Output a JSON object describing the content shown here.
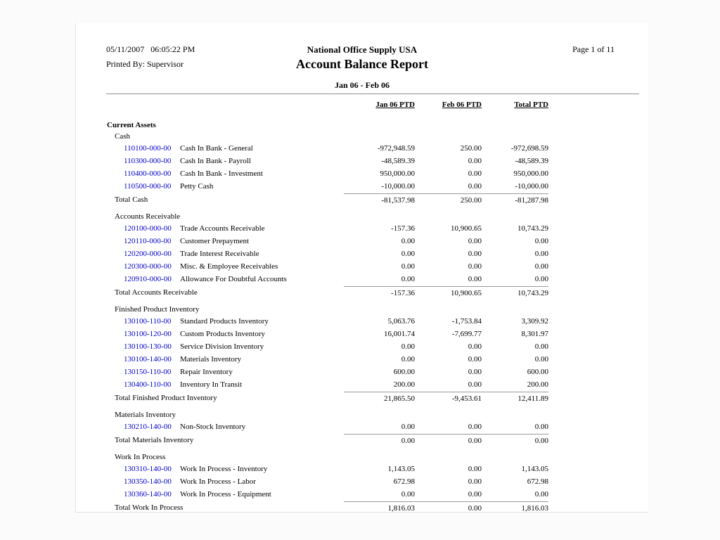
{
  "header": {
    "datetime": "05/11/2007   06:05:22 PM",
    "printed_by": "Printed By: Supervisor",
    "company": "National Office Supply USA",
    "report_title": "Account Balance Report",
    "period": "Jan 06 - Feb 06",
    "page_label": "Page 1 of 11"
  },
  "columns": [
    "Jan 06 PTD",
    "Feb 06 PTD",
    "Total PTD"
  ],
  "colors": {
    "account_link": "#0000cc",
    "rule_gray": "#8f8f8f",
    "total_rule_gray": "#9a9a9a",
    "page_bg": "#ffffff",
    "text": "#000000"
  },
  "report": {
    "group_title": "Current Assets",
    "sections": [
      {
        "name": "Cash",
        "accounts": [
          {
            "number": "110100-000-00",
            "description": "Cash In Bank - General",
            "values": [
              "-972,948.59",
              "250.00",
              "-972,698.59"
            ]
          },
          {
            "number": "110300-000-00",
            "description": "Cash In Bank - Payroll",
            "values": [
              "-48,589.39",
              "0.00",
              "-48,589.39"
            ]
          },
          {
            "number": "110400-000-00",
            "description": "Cash In Bank - Investment",
            "values": [
              "950,000.00",
              "0.00",
              "950,000.00"
            ]
          },
          {
            "number": "110500-000-00",
            "description": "Petty Cash",
            "values": [
              "-10,000.00",
              "0.00",
              "-10,000.00"
            ]
          }
        ],
        "total_label": "Total Cash",
        "totals": [
          "-81,537.98",
          "250.00",
          "-81,287.98"
        ]
      },
      {
        "name": "Accounts Receivable",
        "accounts": [
          {
            "number": "120100-000-00",
            "description": "Trade Accounts Receivable",
            "values": [
              "-157.36",
              "10,900.65",
              "10,743.29"
            ]
          },
          {
            "number": "120110-000-00",
            "description": "Customer Prepayment",
            "values": [
              "0.00",
              "0.00",
              "0.00"
            ]
          },
          {
            "number": "120200-000-00",
            "description": "Trade Interest Receivable",
            "values": [
              "0.00",
              "0.00",
              "0.00"
            ]
          },
          {
            "number": "120300-000-00",
            "description": "Misc. & Employee Receivables",
            "values": [
              "0.00",
              "0.00",
              "0.00"
            ]
          },
          {
            "number": "120910-000-00",
            "description": "Allowance For Doubtful Accounts",
            "values": [
              "0.00",
              "0.00",
              "0.00"
            ]
          }
        ],
        "total_label": "Total Accounts Receivable",
        "totals": [
          "-157.36",
          "10,900.65",
          "10,743.29"
        ]
      },
      {
        "name": "Finished Product Inventory",
        "accounts": [
          {
            "number": "130100-110-00",
            "description": "Standard Products Inventory",
            "values": [
              "5,063.76",
              "-1,753.84",
              "3,309.92"
            ]
          },
          {
            "number": "130100-120-00",
            "description": "Custom Products Inventory",
            "values": [
              "16,001.74",
              "-7,699.77",
              "8,301.97"
            ]
          },
          {
            "number": "130100-130-00",
            "description": "Service Division Inventory",
            "values": [
              "0.00",
              "0.00",
              "0.00"
            ]
          },
          {
            "number": "130100-140-00",
            "description": "Materials Inventory",
            "values": [
              "0.00",
              "0.00",
              "0.00"
            ]
          },
          {
            "number": "130150-110-00",
            "description": "Repair Inventory",
            "values": [
              "600.00",
              "0.00",
              "600.00"
            ]
          },
          {
            "number": "130400-110-00",
            "description": "Inventory In Transit",
            "values": [
              "200.00",
              "0.00",
              "200.00"
            ]
          }
        ],
        "total_label": "Total Finished Product Inventory",
        "totals": [
          "21,865.50",
          "-9,453.61",
          "12,411.89"
        ]
      },
      {
        "name": "Materials Inventory",
        "accounts": [
          {
            "number": "130210-140-00",
            "description": "Non-Stock Inventory",
            "values": [
              "0.00",
              "0.00",
              "0.00"
            ]
          }
        ],
        "total_label": "Total Materials Inventory",
        "totals": [
          "0.00",
          "0.00",
          "0.00"
        ]
      },
      {
        "name": "Work In Process",
        "accounts": [
          {
            "number": "130310-140-00",
            "description": "Work In Process - Inventory",
            "values": [
              "1,143.05",
              "0.00",
              "1,143.05"
            ]
          },
          {
            "number": "130350-140-00",
            "description": "Work In Process - Labor",
            "values": [
              "672.98",
              "0.00",
              "672.98"
            ]
          },
          {
            "number": "130360-140-00",
            "description": "Work In Process - Equipment",
            "values": [
              "0.00",
              "0.00",
              "0.00"
            ]
          }
        ],
        "total_label": "Total Work In Process",
        "totals": [
          "1,816.03",
          "0.00",
          "1,816.03"
        ]
      }
    ]
  }
}
